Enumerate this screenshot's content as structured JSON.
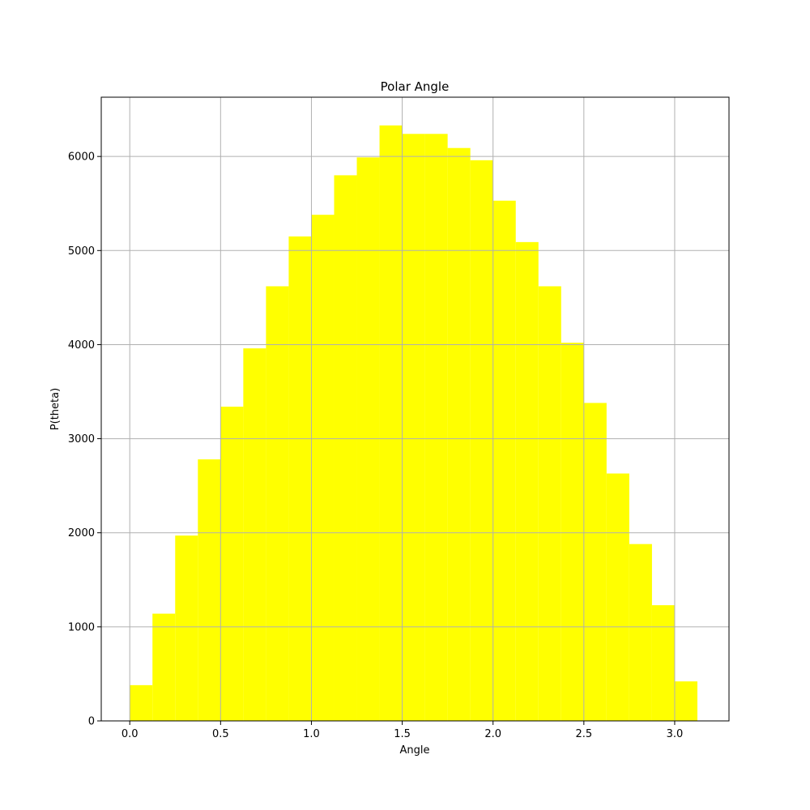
{
  "chart_data": {
    "type": "bar",
    "title": "Polar Angle",
    "xlabel": "Angle",
    "ylabel": "P(theta)",
    "xlim": [
      -0.157,
      3.299
    ],
    "ylim": [
      0,
      6630
    ],
    "grid": true,
    "bar_color": "#ffff00",
    "grid_color": "#b0b0b0",
    "bin_width": 0.125,
    "x_ticks": [
      {
        "value": 0.0,
        "label": "0.0"
      },
      {
        "value": 0.5,
        "label": "0.5"
      },
      {
        "value": 1.0,
        "label": "1.0"
      },
      {
        "value": 1.5,
        "label": "1.5"
      },
      {
        "value": 2.0,
        "label": "2.0"
      },
      {
        "value": 2.5,
        "label": "2.5"
      },
      {
        "value": 3.0,
        "label": "3.0"
      }
    ],
    "y_ticks": [
      {
        "value": 0,
        "label": "0"
      },
      {
        "value": 1000,
        "label": "1000"
      },
      {
        "value": 2000,
        "label": "2000"
      },
      {
        "value": 3000,
        "label": "3000"
      },
      {
        "value": 4000,
        "label": "4000"
      },
      {
        "value": 5000,
        "label": "5000"
      },
      {
        "value": 6000,
        "label": "6000"
      }
    ],
    "bin_starts": [
      0.0,
      0.125,
      0.25,
      0.375,
      0.5,
      0.625,
      0.75,
      0.875,
      1.0,
      1.125,
      1.25,
      1.375,
      1.5,
      1.625,
      1.75,
      1.875,
      2.0,
      2.125,
      2.25,
      2.375,
      2.5,
      2.625,
      2.75,
      2.875,
      3.0
    ],
    "values": [
      380,
      1140,
      1970,
      2780,
      3340,
      3960,
      4620,
      5150,
      5380,
      5800,
      5990,
      6330,
      6240,
      6240,
      6090,
      5960,
      5530,
      5090,
      4620,
      4020,
      3380,
      2630,
      1880,
      1230,
      420
    ]
  }
}
